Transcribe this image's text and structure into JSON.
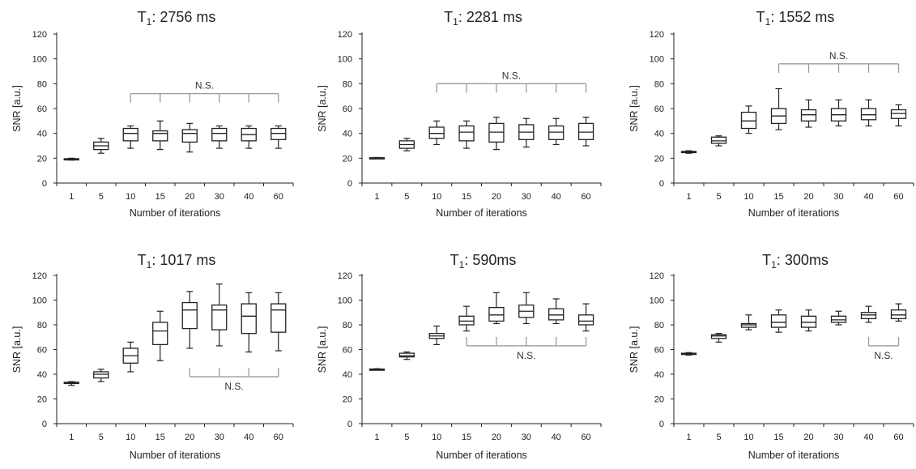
{
  "chart_data": [
    {
      "type": "box",
      "title_main": "T",
      "title_sub": "1",
      "title_rest": ": 2756 ms",
      "xlabel": "Number of iterations",
      "ylabel": "SNR [a.u.]",
      "ylim": [
        0,
        120
      ],
      "yticks": [
        "0",
        "20",
        "40",
        "60",
        "80",
        "100",
        "120"
      ],
      "categories": [
        "1",
        "5",
        "10",
        "15",
        "20",
        "30",
        "40",
        "60"
      ],
      "boxes": [
        {
          "min": 18.5,
          "q1": 19.0,
          "median": 19.3,
          "q3": 19.6,
          "max": 20.0
        },
        {
          "min": 24,
          "q1": 27,
          "median": 30,
          "q3": 33,
          "max": 36
        },
        {
          "min": 28,
          "q1": 34,
          "median": 40,
          "q3": 44,
          "max": 46
        },
        {
          "min": 27,
          "q1": 34,
          "median": 40,
          "q3": 42,
          "max": 50
        },
        {
          "min": 25,
          "q1": 33,
          "median": 40,
          "q3": 43,
          "max": 48
        },
        {
          "min": 28,
          "q1": 34,
          "median": 40,
          "q3": 44,
          "max": 46
        },
        {
          "min": 28,
          "q1": 34,
          "median": 39,
          "q3": 44,
          "max": 46
        },
        {
          "min": 28,
          "q1": 35,
          "median": 40,
          "q3": 44,
          "max": 46
        }
      ],
      "annotation": {
        "text": "N.S.",
        "from": "10",
        "to": "60",
        "level": 72,
        "dir": "down"
      }
    },
    {
      "type": "box",
      "title_main": "T",
      "title_sub": "1",
      "title_rest": ": 2281 ms",
      "xlabel": "Number of iterations",
      "ylabel": "SNR [a.u.]",
      "ylim": [
        0,
        120
      ],
      "yticks": [
        "0",
        "20",
        "40",
        "60",
        "80",
        "100",
        "120"
      ],
      "categories": [
        "1",
        "5",
        "10",
        "15",
        "20",
        "30",
        "40",
        "60"
      ],
      "boxes": [
        {
          "min": 19.8,
          "q1": 20.0,
          "median": 20.2,
          "q3": 20.4,
          "max": 20.6
        },
        {
          "min": 26,
          "q1": 28,
          "median": 31,
          "q3": 34,
          "max": 36
        },
        {
          "min": 31,
          "q1": 36,
          "median": 40,
          "q3": 45,
          "max": 50
        },
        {
          "min": 28,
          "q1": 34,
          "median": 41,
          "q3": 46,
          "max": 50
        },
        {
          "min": 27,
          "q1": 33,
          "median": 41,
          "q3": 48,
          "max": 53
        },
        {
          "min": 29,
          "q1": 35,
          "median": 41,
          "q3": 47,
          "max": 52
        },
        {
          "min": 31,
          "q1": 35,
          "median": 41,
          "q3": 46,
          "max": 52
        },
        {
          "min": 30,
          "q1": 35,
          "median": 41,
          "q3": 48,
          "max": 53
        }
      ],
      "annotation": {
        "text": "N.S.",
        "from": "10",
        "to": "60",
        "level": 80,
        "dir": "down"
      }
    },
    {
      "type": "box",
      "title_main": "T",
      "title_sub": "1",
      "title_rest": ": 1552 ms",
      "xlabel": "Number of iterations",
      "ylabel": "SNR [a.u.]",
      "ylim": [
        0,
        120
      ],
      "yticks": [
        "0",
        "20",
        "40",
        "60",
        "80",
        "100",
        "120"
      ],
      "categories": [
        "1",
        "5",
        "10",
        "15",
        "20",
        "30",
        "40",
        "60"
      ],
      "boxes": [
        {
          "min": 24,
          "q1": 24.5,
          "median": 25,
          "q3": 25.5,
          "max": 26
        },
        {
          "min": 30,
          "q1": 32,
          "median": 34,
          "q3": 37,
          "max": 38
        },
        {
          "min": 40,
          "q1": 44,
          "median": 50,
          "q3": 57,
          "max": 62
        },
        {
          "min": 43,
          "q1": 48,
          "median": 54,
          "q3": 60,
          "max": 76
        },
        {
          "min": 45,
          "q1": 50,
          "median": 55,
          "q3": 59,
          "max": 67
        },
        {
          "min": 46,
          "q1": 50,
          "median": 55,
          "q3": 60,
          "max": 67
        },
        {
          "min": 46,
          "q1": 51,
          "median": 55,
          "q3": 60,
          "max": 67
        },
        {
          "min": 46,
          "q1": 52,
          "median": 56,
          "q3": 59,
          "max": 63
        }
      ],
      "annotation": {
        "text": "N.S.",
        "from": "15",
        "to": "60",
        "level": 96,
        "dir": "down"
      }
    },
    {
      "type": "box",
      "title_main": "T",
      "title_sub": "1",
      "title_rest": ": 1017 ms",
      "xlabel": "Number of iterations",
      "ylabel": "SNR [a.u.]",
      "ylim": [
        0,
        120
      ],
      "yticks": [
        "0",
        "20",
        "40",
        "60",
        "80",
        "100",
        "120"
      ],
      "categories": [
        "1",
        "5",
        "10",
        "15",
        "20",
        "30",
        "40",
        "60"
      ],
      "boxes": [
        {
          "min": 31,
          "q1": 32.5,
          "median": 33,
          "q3": 33.5,
          "max": 34
        },
        {
          "min": 34,
          "q1": 37,
          "median": 40,
          "q3": 42,
          "max": 44
        },
        {
          "min": 42,
          "q1": 49,
          "median": 55,
          "q3": 61,
          "max": 66
        },
        {
          "min": 51,
          "q1": 64,
          "median": 75,
          "q3": 82,
          "max": 91
        },
        {
          "min": 61,
          "q1": 77,
          "median": 92,
          "q3": 98,
          "max": 107
        },
        {
          "min": 63,
          "q1": 76,
          "median": 92,
          "q3": 96,
          "max": 113
        },
        {
          "min": 58,
          "q1": 73,
          "median": 87,
          "q3": 97,
          "max": 106
        },
        {
          "min": 59,
          "q1": 74,
          "median": 92,
          "q3": 97,
          "max": 106
        }
      ],
      "annotation": {
        "text": "N.S.",
        "from": "20",
        "to": "60",
        "level": 38,
        "dir": "up"
      }
    },
    {
      "type": "box",
      "title_main": "T",
      "title_sub": "1",
      "title_rest": ": 590ms",
      "xlabel": "Number of iterations",
      "ylabel": "SNR [a.u.]",
      "ylim": [
        0,
        120
      ],
      "yticks": [
        "0",
        "20",
        "40",
        "60",
        "80",
        "100",
        "120"
      ],
      "categories": [
        "1",
        "5",
        "10",
        "15",
        "20",
        "30",
        "40",
        "60"
      ],
      "boxes": [
        {
          "min": 43.5,
          "q1": 43.8,
          "median": 44,
          "q3": 44.2,
          "max": 44.5
        },
        {
          "min": 52,
          "q1": 54,
          "median": 55,
          "q3": 57,
          "max": 58
        },
        {
          "min": 64,
          "q1": 69,
          "median": 71,
          "q3": 73,
          "max": 79
        },
        {
          "min": 75,
          "q1": 80,
          "median": 83,
          "q3": 87,
          "max": 95
        },
        {
          "min": 81,
          "q1": 83,
          "median": 88,
          "q3": 94,
          "max": 106
        },
        {
          "min": 81,
          "q1": 86,
          "median": 91,
          "q3": 96,
          "max": 106
        },
        {
          "min": 81,
          "q1": 84,
          "median": 88,
          "q3": 93,
          "max": 101
        },
        {
          "min": 75,
          "q1": 80,
          "median": 83,
          "q3": 88,
          "max": 97
        }
      ],
      "annotation": {
        "text": "N.S.",
        "from": "15",
        "to": "60",
        "level": 63,
        "dir": "up"
      }
    },
    {
      "type": "box",
      "title_main": "T",
      "title_sub": "1",
      "title_rest": ": 300ms",
      "xlabel": "Number of iterations",
      "ylabel": "SNR [a.u.]",
      "ylim": [
        0,
        120
      ],
      "yticks": [
        "0",
        "20",
        "40",
        "60",
        "80",
        "100",
        "120"
      ],
      "categories": [
        "1",
        "5",
        "10",
        "15",
        "20",
        "30",
        "40",
        "60"
      ],
      "boxes": [
        {
          "min": 55.5,
          "q1": 56,
          "median": 56.5,
          "q3": 57,
          "max": 57.5
        },
        {
          "min": 66,
          "q1": 69,
          "median": 71,
          "q3": 72,
          "max": 73
        },
        {
          "min": 76,
          "q1": 78,
          "median": 80,
          "q3": 81,
          "max": 88
        },
        {
          "min": 74,
          "q1": 78,
          "median": 82,
          "q3": 88,
          "max": 92
        },
        {
          "min": 75,
          "q1": 78,
          "median": 82,
          "q3": 87,
          "max": 92
        },
        {
          "min": 80,
          "q1": 82,
          "median": 84,
          "q3": 87,
          "max": 91
        },
        {
          "min": 82,
          "q1": 85,
          "median": 88,
          "q3": 90,
          "max": 95
        },
        {
          "min": 83,
          "q1": 85,
          "median": 88,
          "q3": 92,
          "max": 97
        }
      ],
      "annotation": {
        "text": "N.S.",
        "from": "40",
        "to": "60",
        "level": 63,
        "dir": "up"
      }
    }
  ]
}
